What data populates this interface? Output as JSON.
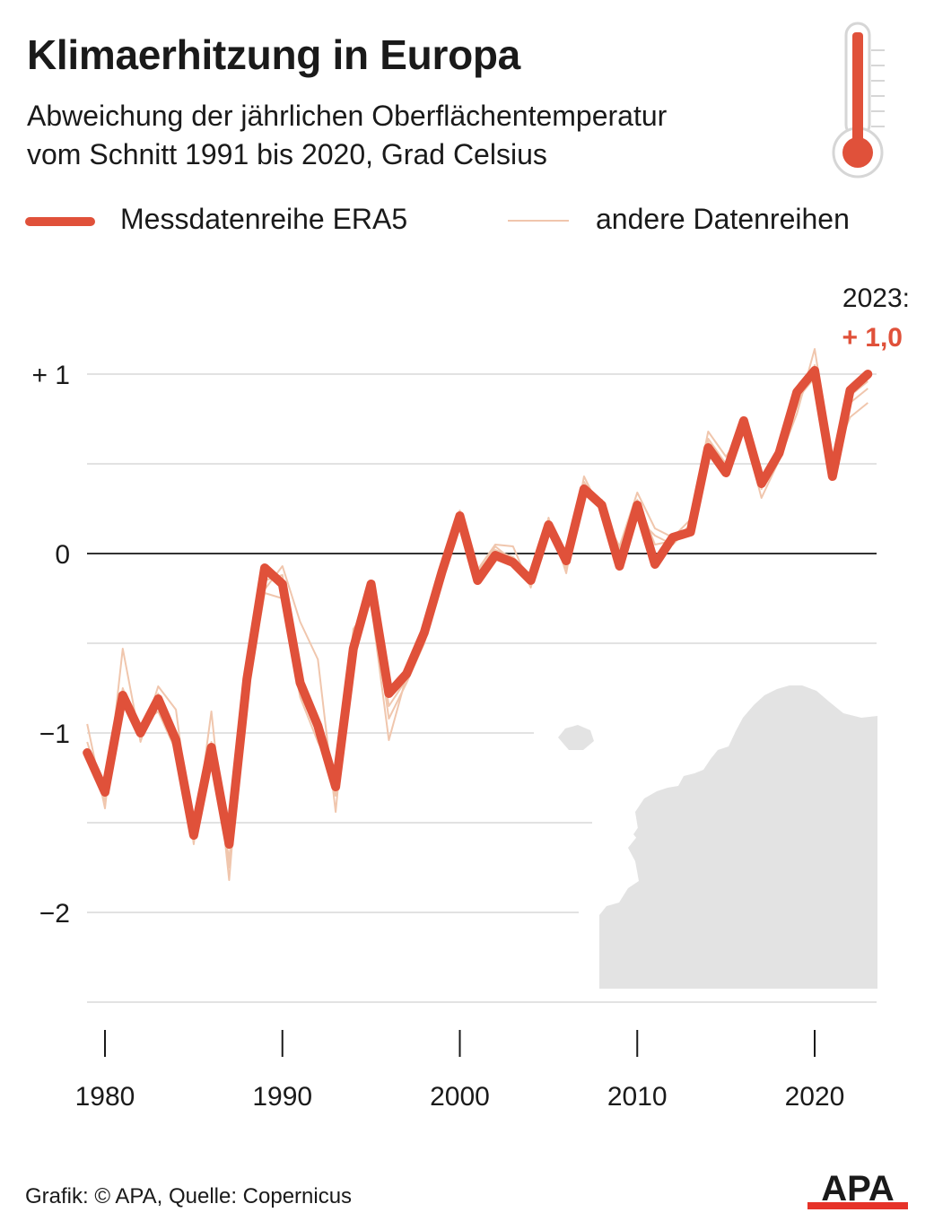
{
  "header": {
    "title": "Klimaerhitzung in Europa",
    "subtitle_line1": "Abweichung der jährlichen Oberflächentemperatur",
    "subtitle_line2": "vom Schnitt 1991 bis 2020, Grad Celsius"
  },
  "legend": {
    "main": "Messdatenreihe ERA5",
    "other": "andere Datenreihen"
  },
  "colors": {
    "main": "#e0513a",
    "other": "#f0c6ad",
    "grid": "#d9d9d9",
    "zero": "#333333",
    "map": "#e3e3e3"
  },
  "annotation": {
    "year_label": "2023:",
    "value_label": "+ 1,0"
  },
  "footer": {
    "source": "Grafik: © APA, Quelle: Copernicus",
    "logo_text": "APA"
  },
  "icons": {
    "thermometer": "thermometer-icon",
    "europe_map": "europe-map-icon",
    "logo": "apa-logo-icon"
  },
  "chart_data": {
    "type": "line",
    "title": "Klimaerhitzung in Europa",
    "ylim": [
      -2.5,
      1.0
    ],
    "xlim": [
      1979,
      2023
    ],
    "yticks": [
      1,
      0,
      -1,
      -2
    ],
    "ytick_labels": [
      "+ 1",
      "0",
      "−1",
      "−2"
    ],
    "xticks": [
      1980,
      1990,
      2000,
      2010,
      2020
    ],
    "xtick_labels": [
      "1980",
      "1990",
      "2000",
      "2010",
      "2020"
    ],
    "grid": "horizontal",
    "legend_position": "top",
    "x": [
      1979,
      1980,
      1981,
      1982,
      1983,
      1984,
      1985,
      1986,
      1987,
      1988,
      1989,
      1990,
      1991,
      1992,
      1993,
      1994,
      1995,
      1996,
      1997,
      1998,
      1999,
      2000,
      2001,
      2002,
      2003,
      2004,
      2005,
      2006,
      2007,
      2008,
      2009,
      2010,
      2011,
      2012,
      2013,
      2014,
      2015,
      2016,
      2017,
      2018,
      2019,
      2020,
      2021,
      2022,
      2023
    ],
    "series": [
      {
        "name": "Messdatenreihe ERA5",
        "values": [
          -1.11,
          -1.33,
          -0.79,
          -1.0,
          -0.81,
          -1.04,
          -1.57,
          -1.08,
          -1.62,
          -0.7,
          -0.08,
          -0.17,
          -0.72,
          -0.96,
          -1.3,
          -0.53,
          -0.17,
          -0.78,
          -0.67,
          -0.44,
          -0.1,
          0.21,
          -0.15,
          -0.01,
          -0.05,
          -0.15,
          0.16,
          -0.04,
          0.36,
          0.27,
          -0.07,
          0.27,
          -0.06,
          0.09,
          0.12,
          0.59,
          0.45,
          0.74,
          0.39,
          0.56,
          0.9,
          1.02,
          0.43,
          0.91,
          1.0
        ]
      },
      {
        "name": "andere Datenreihen",
        "values": [
          -0.95,
          -1.42,
          -0.53,
          -1.05,
          -0.74,
          -0.87,
          -1.62,
          -0.88,
          -1.82,
          -0.62,
          -0.2,
          -0.07,
          -0.38,
          -0.59,
          -1.44,
          -0.42,
          -0.28,
          -1.04,
          -0.68,
          -0.41,
          -0.05,
          0.24,
          -0.09,
          0.05,
          0.04,
          -0.19,
          0.2,
          -0.11,
          0.43,
          0.23,
          0.04,
          0.34,
          0.14,
          0.09,
          0.19,
          0.68,
          0.54,
          0.69,
          0.31,
          0.52,
          0.78,
          1.14,
          0.52,
          0.76,
          0.84
        ]
      },
      {
        "name": "andere Datenreihen",
        "values": [
          -1.15,
          -1.3,
          -0.85,
          -0.95,
          -0.88,
          -1.1,
          -1.5,
          -1.15,
          -1.7,
          -0.8,
          -0.22,
          -0.25,
          -0.8,
          -1.05,
          -1.25,
          -0.6,
          -0.22,
          -0.92,
          -0.72,
          -0.5,
          -0.15,
          0.16,
          -0.1,
          0.02,
          -0.02,
          -0.12,
          0.12,
          0.02,
          0.32,
          0.3,
          -0.02,
          0.2,
          0.1,
          0.05,
          0.15,
          0.62,
          0.48,
          0.7,
          0.42,
          0.6,
          0.86,
          0.98,
          0.48,
          0.88,
          0.96
        ]
      },
      {
        "name": "andere Datenreihen",
        "values": [
          -1.05,
          -1.38,
          -0.75,
          -1.02,
          -0.78,
          -1.0,
          -1.55,
          -1.05,
          -1.75,
          -0.75,
          -0.15,
          -0.12,
          -0.78,
          -1.0,
          -1.35,
          -0.55,
          -0.2,
          -0.85,
          -0.7,
          -0.45,
          -0.12,
          0.2,
          -0.12,
          0.04,
          -0.04,
          -0.16,
          0.18,
          -0.08,
          0.4,
          0.25,
          0.02,
          0.3,
          0.05,
          0.07,
          0.16,
          0.64,
          0.5,
          0.72,
          0.36,
          0.55,
          0.82,
          1.05,
          0.46,
          0.84,
          0.92
        ]
      }
    ]
  }
}
